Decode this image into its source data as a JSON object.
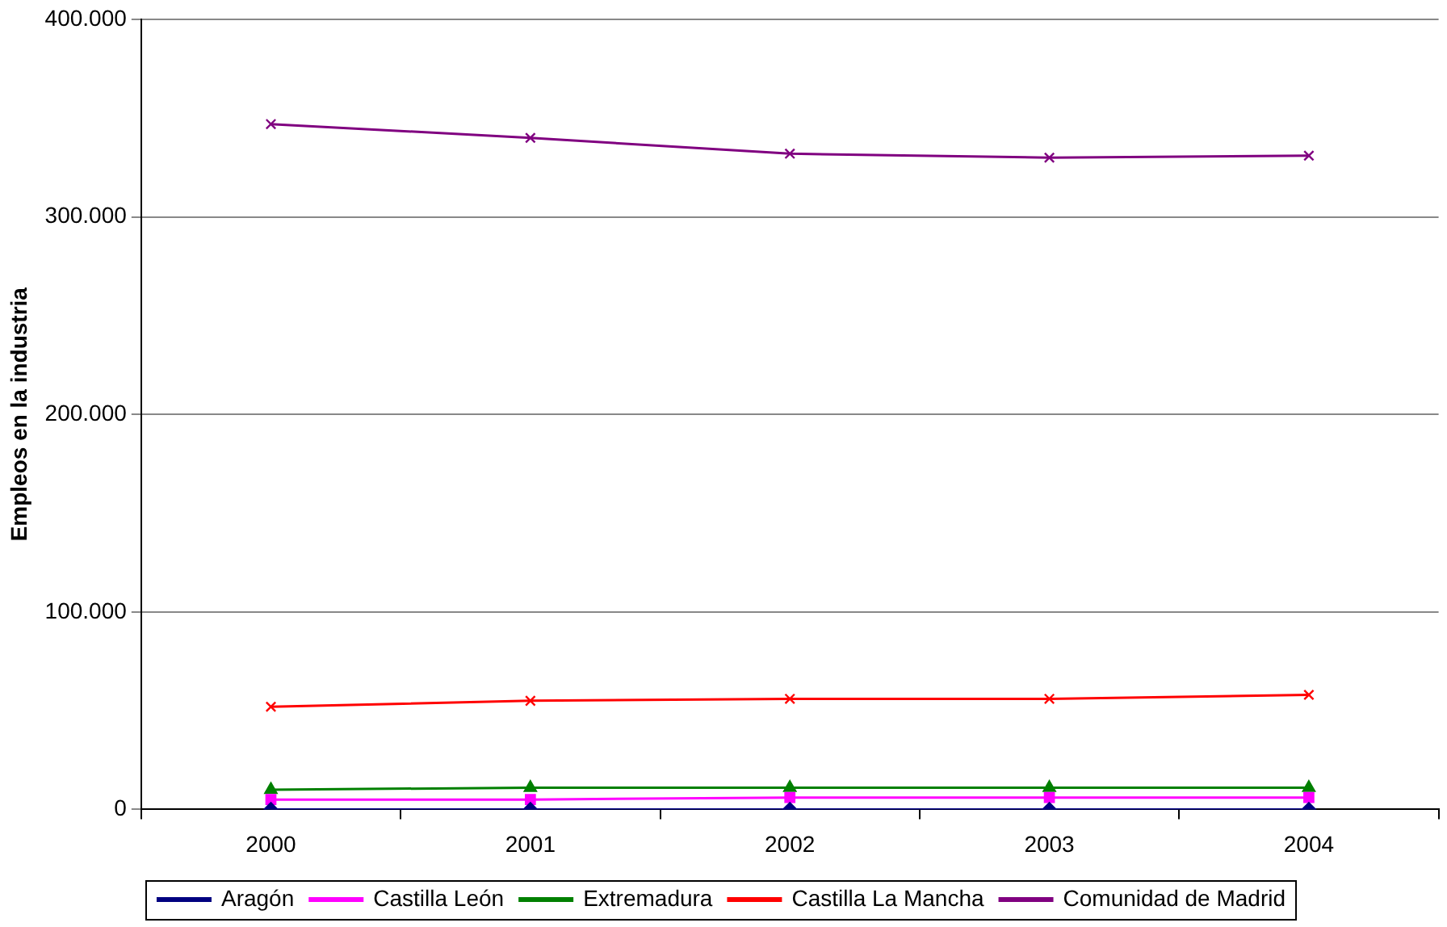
{
  "chart_data": {
    "type": "line",
    "ylabel": "Empleos en la industria",
    "categories": [
      "2000",
      "2001",
      "2002",
      "2003",
      "2004"
    ],
    "series": [
      {
        "name": "Aragón",
        "color": "#000080",
        "marker": "diamond",
        "values": [
          0,
          0,
          0,
          0,
          0
        ]
      },
      {
        "name": "Castilla León",
        "color": "#ff00ff",
        "marker": "square",
        "values": [
          5000,
          5000,
          6000,
          6000,
          6000
        ]
      },
      {
        "name": "Extremadura",
        "color": "#008000",
        "marker": "triangle",
        "values": [
          10000,
          11000,
          11000,
          11000,
          11000
        ]
      },
      {
        "name": "Castilla La Mancha",
        "color": "#ff0000",
        "marker": "cross",
        "values": [
          52000,
          55000,
          56000,
          56000,
          58000
        ]
      },
      {
        "name": "Comunidad de Madrid",
        "color": "#800080",
        "marker": "cross",
        "values": [
          347000,
          340000,
          332000,
          330000,
          331000
        ]
      }
    ],
    "ylim": [
      0,
      400000
    ],
    "yticks": [
      {
        "value": 0,
        "label": "0"
      },
      {
        "value": 100000,
        "label": "100.000"
      },
      {
        "value": 200000,
        "label": "200.000"
      },
      {
        "value": 300000,
        "label": "300.000"
      },
      {
        "value": 400000,
        "label": "400.000"
      }
    ],
    "grid": "y",
    "legend": "bottom",
    "line_style": "solid"
  }
}
